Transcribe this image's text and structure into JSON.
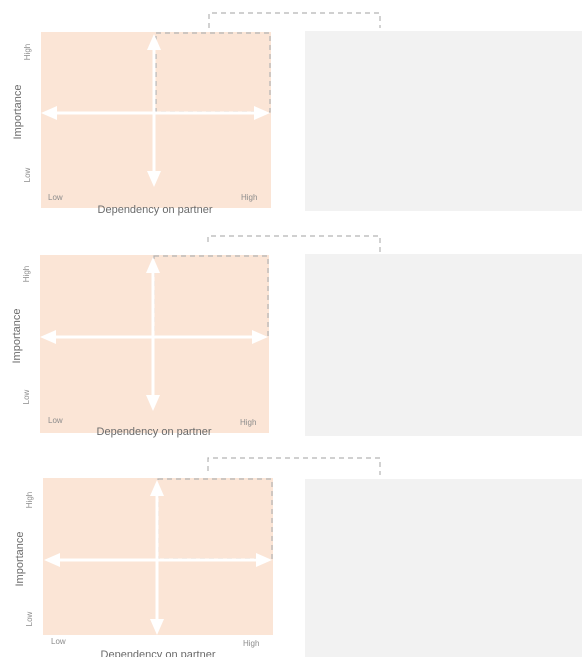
{
  "matrices": [
    {
      "x_axis_title": "Dependency on partner",
      "y_axis_title": "Importance",
      "x_low": "Low",
      "x_high": "High",
      "y_low": "Low",
      "y_high": "High"
    },
    {
      "x_axis_title": "Dependency on partner",
      "y_axis_title": "Importance",
      "x_low": "Low",
      "x_high": "High",
      "y_low": "Low",
      "y_high": "High"
    },
    {
      "x_axis_title": "Dependency on partner",
      "y_axis_title": "Importance",
      "x_low": "Low",
      "x_high": "High",
      "y_low": "Low",
      "y_high": "High"
    }
  ],
  "colors": {
    "quadrant_fill": "#fbe5d6",
    "arrow": "#ffffff",
    "dash": "#b3b3b3",
    "side_panel": "#f2f2f2"
  }
}
